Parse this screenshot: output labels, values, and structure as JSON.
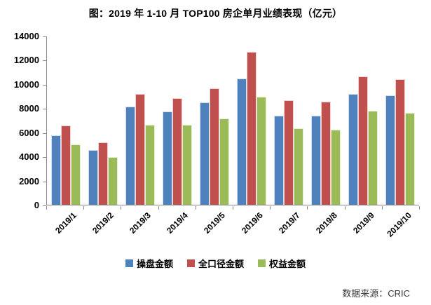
{
  "title": "图：2019 年 1-10 月 TOP100 房企单月业绩表现（亿元）",
  "source": "数据来源：CRIC",
  "colors": {
    "series_blue": "#4F81BD",
    "series_red": "#C0504D",
    "series_green": "#9BBB59",
    "axis": "#8c8c8c"
  },
  "chart_data": {
    "type": "bar",
    "title": "图：2019 年 1-10 月 TOP100 房企单月业绩表现（亿元）",
    "categories": [
      "2019/1",
      "2019/2",
      "2019/3",
      "2019/4",
      "2019/5",
      "2019/6",
      "2019/7",
      "2019/8",
      "2019/9",
      "2019/10"
    ],
    "series": [
      {
        "name": "操盘金额",
        "color": "#4F81BD",
        "values": [
          5750,
          4540,
          8150,
          7770,
          8510,
          10530,
          7400,
          7400,
          9220,
          9080
        ]
      },
      {
        "name": "全口径金额",
        "color": "#C0504D",
        "values": [
          6570,
          5180,
          9240,
          8890,
          9700,
          12730,
          8670,
          8600,
          10660,
          10470
        ]
      },
      {
        "name": "权益金额",
        "color": "#9BBB59",
        "values": [
          5020,
          3960,
          6670,
          6630,
          7190,
          9010,
          6340,
          6230,
          7800,
          7660
        ]
      }
    ],
    "xlabel": "",
    "ylabel": "",
    "ylim": [
      0,
      14000
    ],
    "ytick_step": 2000,
    "grid": false,
    "legend_position": "bottom",
    "unit": "亿元"
  }
}
